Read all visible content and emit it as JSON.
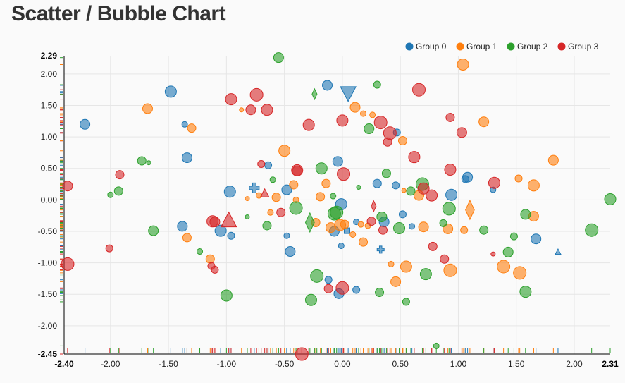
{
  "title": "Scatter / Bubble Chart",
  "chart_data": {
    "type": "scatter",
    "title": "Scatter / Bubble Chart",
    "xlim": [
      -2.4,
      2.31
    ],
    "ylim": [
      -2.45,
      2.29
    ],
    "x_ticks": [
      "-2.40",
      "-2.00",
      "-1.50",
      "-1.00",
      "-0.50",
      "0.00",
      "0.50",
      "1.00",
      "1.50",
      "2.00",
      "2.31"
    ],
    "y_ticks": [
      "2.29",
      "2.00",
      "1.50",
      "1.00",
      "0.50",
      "0.00",
      "-0.50",
      "-1.00",
      "-1.50",
      "-2.00",
      "-2.45"
    ],
    "grid": true,
    "legend_position": "top-right",
    "colors": {
      "Group 0": "#1f77b4",
      "Group 1": "#ff7f0e",
      "Group 2": "#2ca02c",
      "Group 3": "#d62728"
    },
    "series": [
      {
        "name": "Group 0",
        "points": [
          [
            -2.22,
            1.2,
            7,
            "circle"
          ],
          [
            -1.48,
            1.72,
            8,
            "circle"
          ],
          [
            -1.36,
            1.2,
            4,
            "circle"
          ],
          [
            -1.34,
            0.67,
            7,
            "circle"
          ],
          [
            -0.97,
            0.13,
            8,
            "circle"
          ],
          [
            -1.38,
            -0.42,
            7,
            "circle"
          ],
          [
            -1.05,
            -0.49,
            8,
            "circle"
          ],
          [
            -0.96,
            -0.57,
            5,
            "circle"
          ],
          [
            -0.64,
            0.55,
            5,
            "circle"
          ],
          [
            -0.48,
            0.16,
            7,
            "circle"
          ],
          [
            -0.48,
            -0.57,
            4,
            "circle"
          ],
          [
            -0.45,
            -0.82,
            7,
            "circle"
          ],
          [
            -0.13,
            1.82,
            7,
            "circle"
          ],
          [
            0.05,
            1.7,
            11,
            "triangle-down"
          ],
          [
            0.47,
            1.07,
            5,
            "circle"
          ],
          [
            -0.04,
            0.61,
            7,
            "circle"
          ],
          [
            -0.01,
            -0.07,
            8,
            "circle"
          ],
          [
            -0.07,
            -0.5,
            7,
            "circle"
          ],
          [
            -0.01,
            -0.73,
            4,
            "circle"
          ],
          [
            0.04,
            -0.49,
            4,
            "square"
          ],
          [
            0.12,
            -0.35,
            4,
            "circle"
          ],
          [
            0.3,
            0.26,
            6,
            "circle"
          ],
          [
            0.46,
            0.23,
            5,
            "circle"
          ],
          [
            0.36,
            -0.35,
            7,
            "circle"
          ],
          [
            0.52,
            -0.23,
            5,
            "circle"
          ],
          [
            0.33,
            -0.79,
            5,
            "cross"
          ],
          [
            0.6,
            -0.42,
            4,
            "circle"
          ],
          [
            -0.12,
            -1.27,
            5,
            "circle"
          ],
          [
            0.12,
            -1.43,
            5,
            "circle"
          ],
          [
            -0.03,
            -1.49,
            7,
            "circle"
          ],
          [
            0.94,
            0.08,
            8,
            "circle"
          ],
          [
            1.06,
            0.33,
            5,
            "circle"
          ],
          [
            1.08,
            0.36,
            7,
            "circle"
          ],
          [
            1.3,
            0.16,
            4,
            "circle"
          ],
          [
            1.67,
            -0.62,
            7,
            "circle"
          ],
          [
            1.86,
            -0.83,
            4,
            "triangle-up"
          ],
          [
            -0.76,
            0.19,
            7,
            "cross"
          ]
        ]
      },
      {
        "name": "Group 1",
        "points": [
          [
            -1.68,
            1.45,
            7,
            "circle"
          ],
          [
            -1.3,
            1.14,
            6,
            "circle"
          ],
          [
            -0.87,
            1.43,
            3,
            "circle"
          ],
          [
            -0.5,
            0.78,
            8,
            "circle"
          ],
          [
            -0.42,
            0.24,
            6,
            "circle"
          ],
          [
            -0.82,
            0.02,
            3,
            "circle"
          ],
          [
            -0.72,
            0.07,
            4,
            "circle"
          ],
          [
            -0.57,
            0.04,
            6,
            "circle"
          ],
          [
            -0.4,
            0.0,
            4,
            "circle"
          ],
          [
            -0.62,
            -0.2,
            4,
            "circle"
          ],
          [
            -1.34,
            -0.6,
            6,
            "circle"
          ],
          [
            -1.14,
            -0.94,
            6,
            "circle"
          ],
          [
            -0.23,
            -0.36,
            6,
            "circle"
          ],
          [
            -0.1,
            -0.44,
            7,
            "circle"
          ],
          [
            -0.02,
            -0.4,
            8,
            "circle"
          ],
          [
            0.02,
            -0.39,
            6,
            "circle"
          ],
          [
            0.09,
            -0.55,
            4,
            "circle"
          ],
          [
            0.18,
            -0.67,
            6,
            "circle"
          ],
          [
            0.16,
            -0.39,
            4,
            "circle"
          ],
          [
            0.22,
            -0.41,
            4,
            "circle"
          ],
          [
            -0.14,
            0.26,
            6,
            "circle"
          ],
          [
            -0.19,
            0.05,
            6,
            "circle"
          ],
          [
            0.18,
            1.37,
            4,
            "circle"
          ],
          [
            0.11,
            1.47,
            7,
            "circle"
          ],
          [
            0.26,
            1.35,
            4,
            "circle"
          ],
          [
            0.52,
            0.94,
            6,
            "circle"
          ],
          [
            0.53,
            0.15,
            3,
            "circle"
          ],
          [
            0.66,
            0.07,
            7,
            "circle"
          ],
          [
            0.7,
            -0.43,
            7,
            "circle"
          ],
          [
            0.91,
            -0.46,
            7,
            "circle"
          ],
          [
            1.05,
            -0.48,
            5,
            "circle"
          ],
          [
            1.1,
            -0.16,
            9,
            "diamond"
          ],
          [
            0.42,
            -1.02,
            4,
            "circle"
          ],
          [
            0.46,
            -1.3,
            7,
            "circle"
          ],
          [
            0.55,
            -1.06,
            8,
            "circle"
          ],
          [
            0.93,
            -1.12,
            9,
            "circle"
          ],
          [
            1.04,
            2.15,
            8,
            "circle"
          ],
          [
            1.22,
            1.24,
            7,
            "circle"
          ],
          [
            1.52,
            0.34,
            5,
            "circle"
          ],
          [
            1.65,
            0.23,
            8,
            "circle"
          ],
          [
            1.65,
            -0.26,
            7,
            "circle"
          ],
          [
            1.39,
            -1.06,
            9,
            "circle"
          ],
          [
            1.53,
            -1.16,
            9,
            "circle"
          ],
          [
            1.82,
            0.63,
            7,
            "circle"
          ]
        ]
      },
      {
        "name": "Group 2",
        "points": [
          [
            -0.55,
            2.26,
            7,
            "circle"
          ],
          [
            -0.24,
            1.68,
            5,
            "diamond"
          ],
          [
            0.3,
            1.83,
            5,
            "circle"
          ],
          [
            0.23,
            1.13,
            7,
            "circle"
          ],
          [
            -1.73,
            0.62,
            6,
            "circle"
          ],
          [
            -1.67,
            0.59,
            3,
            "circle"
          ],
          [
            -2.0,
            0.08,
            4,
            "circle"
          ],
          [
            -1.93,
            0.14,
            6,
            "circle"
          ],
          [
            -1.63,
            -0.49,
            7,
            "circle"
          ],
          [
            -1.23,
            -0.82,
            4,
            "circle"
          ],
          [
            -0.82,
            -0.27,
            3,
            "circle"
          ],
          [
            -0.65,
            -0.41,
            6,
            "circle"
          ],
          [
            -0.6,
            0.32,
            4,
            "circle"
          ],
          [
            -0.4,
            -0.13,
            9,
            "circle"
          ],
          [
            -0.28,
            -0.36,
            9,
            "diamond"
          ],
          [
            -0.18,
            0.5,
            8,
            "circle"
          ],
          [
            -0.08,
            0.06,
            4,
            "circle"
          ],
          [
            -0.07,
            -0.22,
            9,
            "circle"
          ],
          [
            0.14,
            0.2,
            3,
            "circle"
          ],
          [
            0.38,
            0.42,
            6,
            "circle"
          ],
          [
            0.34,
            -0.27,
            7,
            "circle"
          ],
          [
            0.49,
            -0.45,
            8,
            "circle"
          ],
          [
            0.59,
            0.14,
            6,
            "circle"
          ],
          [
            0.69,
            0.25,
            9,
            "circle"
          ],
          [
            0.87,
            -0.37,
            5,
            "circle"
          ],
          [
            0.92,
            -0.14,
            9,
            "circle"
          ],
          [
            1.22,
            -0.48,
            6,
            "circle"
          ],
          [
            1.48,
            -0.58,
            5,
            "circle"
          ],
          [
            1.43,
            -0.83,
            7,
            "circle"
          ],
          [
            1.58,
            -0.23,
            7,
            "circle"
          ],
          [
            1.58,
            -1.46,
            8,
            "circle"
          ],
          [
            2.15,
            -0.48,
            9,
            "circle"
          ],
          [
            2.31,
            0.01,
            8,
            "circle"
          ],
          [
            -0.27,
            -1.59,
            8,
            "circle"
          ],
          [
            -0.22,
            -1.21,
            9,
            "circle"
          ],
          [
            -1.0,
            -1.52,
            8,
            "circle"
          ],
          [
            0.32,
            -1.47,
            6,
            "circle"
          ],
          [
            0.55,
            -1.62,
            5,
            "circle"
          ],
          [
            0.72,
            -1.18,
            8,
            "circle"
          ],
          [
            0.81,
            -2.32,
            4,
            "circle"
          ],
          [
            -0.05,
            -0.2,
            9,
            "circle"
          ]
        ]
      },
      {
        "name": "Group 3",
        "points": [
          [
            -0.96,
            1.6,
            8,
            "circle"
          ],
          [
            -0.74,
            1.67,
            9,
            "circle"
          ],
          [
            -0.79,
            1.43,
            7,
            "circle"
          ],
          [
            -0.65,
            1.43,
            8,
            "circle"
          ],
          [
            -0.29,
            1.19,
            8,
            "circle"
          ],
          [
            0.0,
            1.26,
            8,
            "circle"
          ],
          [
            0.33,
            1.23,
            9,
            "circle"
          ],
          [
            0.41,
            1.06,
            9,
            "circle"
          ],
          [
            0.39,
            0.92,
            6,
            "circle"
          ],
          [
            0.62,
            0.68,
            8,
            "circle"
          ],
          [
            0.66,
            1.75,
            9,
            "circle"
          ],
          [
            0.93,
            1.31,
            6,
            "circle"
          ],
          [
            1.03,
            1.07,
            7,
            "circle"
          ],
          [
            0.93,
            0.48,
            8,
            "circle"
          ],
          [
            0.7,
            0.18,
            8,
            "circle"
          ],
          [
            0.77,
            0.07,
            8,
            "circle"
          ],
          [
            1.31,
            0.27,
            8,
            "circle"
          ],
          [
            1.3,
            -0.86,
            3,
            "circle"
          ],
          [
            -1.92,
            0.4,
            6,
            "circle"
          ],
          [
            -2.37,
            0.22,
            7,
            "circle"
          ],
          [
            -0.7,
            0.57,
            5,
            "circle"
          ],
          [
            -0.39,
            0.47,
            8,
            "circle"
          ],
          [
            -0.39,
            0.46,
            7,
            "circle"
          ],
          [
            0.01,
            0.41,
            9,
            "circle"
          ],
          [
            -0.67,
            0.1,
            6,
            "triangle-up"
          ],
          [
            -0.98,
            -0.33,
            11,
            "triangle-up"
          ],
          [
            -1.12,
            -0.34,
            8,
            "circle"
          ],
          [
            -1.1,
            -0.35,
            7,
            "circle"
          ],
          [
            -0.53,
            -0.2,
            6,
            "circle"
          ],
          [
            0.27,
            -0.1,
            5,
            "diamond"
          ],
          [
            0.25,
            -0.34,
            6,
            "circle"
          ],
          [
            0.35,
            -0.48,
            6,
            "circle"
          ],
          [
            0.78,
            -0.74,
            6,
            "circle"
          ],
          [
            0.88,
            -0.94,
            6,
            "circle"
          ],
          [
            -1.13,
            -1.05,
            5,
            "circle"
          ],
          [
            -1.1,
            -1.11,
            5,
            "circle"
          ],
          [
            -2.01,
            -0.77,
            5,
            "circle"
          ],
          [
            -2.37,
            -1.02,
            9,
            "circle"
          ],
          [
            -0.12,
            -1.41,
            6,
            "circle"
          ],
          [
            0.0,
            -1.4,
            9,
            "circle"
          ],
          [
            -0.35,
            -2.45,
            9,
            "circle"
          ]
        ]
      }
    ]
  }
}
